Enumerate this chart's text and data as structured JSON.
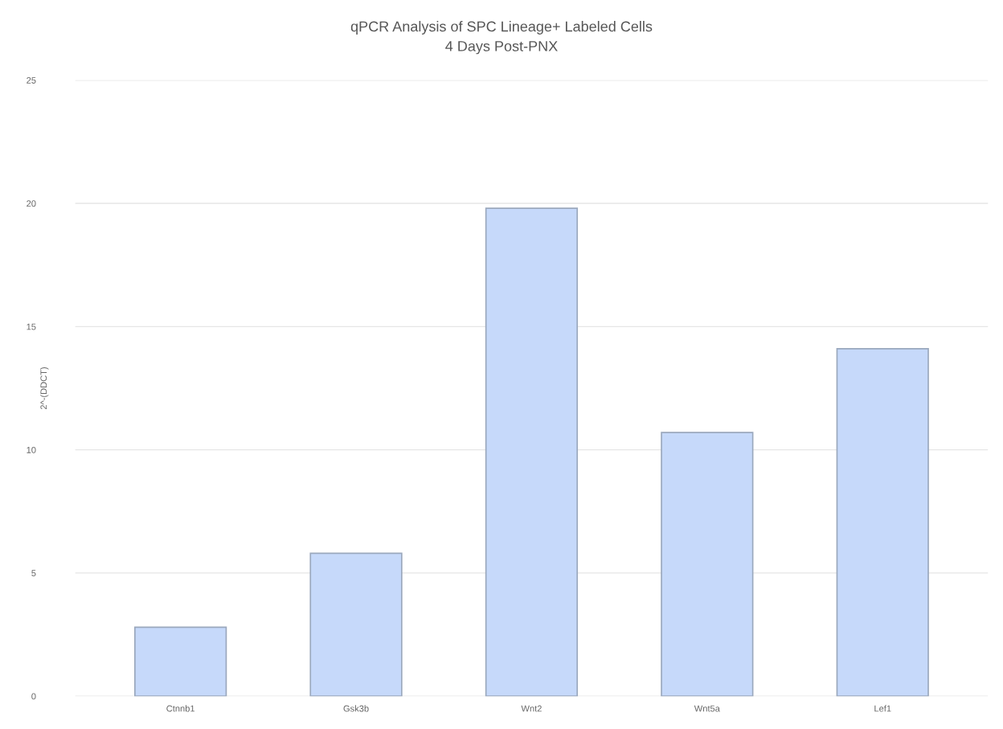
{
  "chart_data": {
    "type": "bar",
    "title": "qPCR Analysis of SPC Lineage+ Labeled Cells",
    "subtitle": "4 Days Post-PNX",
    "ylabel": "2^-(DDCT)",
    "categories": [
      "Ctnnb1",
      "Gsk3b",
      "Wnt2",
      "Wnt5a",
      "Lef1"
    ],
    "values": [
      2.8,
      5.8,
      19.8,
      10.7,
      14.1
    ],
    "color": "#c6d9fa",
    "ylim": [
      0,
      25
    ],
    "yticks": [
      0,
      5,
      10,
      15,
      20,
      25
    ],
    "grid": "y",
    "legend": false
  }
}
